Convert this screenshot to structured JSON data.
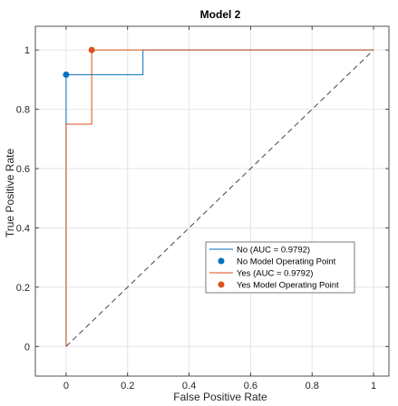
{
  "chart_data": {
    "type": "line",
    "title": "Model 2",
    "xlabel": "False Positive Rate",
    "ylabel": "True Positive Rate",
    "xlim": [
      -0.1,
      1.05
    ],
    "ylim": [
      -0.1,
      1.08
    ],
    "xticks": [
      0,
      0.2,
      0.4,
      0.6,
      0.8,
      1
    ],
    "xtick_labels": [
      "0",
      "0.2",
      "0.4",
      "0.6",
      "0.8",
      "1"
    ],
    "yticks": [
      0,
      0.2,
      0.4,
      0.6,
      0.8,
      1
    ],
    "ytick_labels": [
      "0",
      "0.2",
      "0.4",
      "0.6",
      "0.8",
      "1"
    ],
    "grid": true,
    "legend_position": "bottom-right",
    "series": [
      {
        "name": "No (AUC = 0.9792)",
        "kind": "line",
        "color": "#0072BD",
        "x": [
          0,
          0,
          0.25,
          0.25,
          1
        ],
        "y": [
          0,
          0.9167,
          0.9167,
          1,
          1
        ]
      },
      {
        "name": "No Model Operating Point",
        "kind": "point",
        "color": "#0072BD",
        "x": [
          0
        ],
        "y": [
          0.9167
        ]
      },
      {
        "name": "Yes (AUC = 0.9792)",
        "kind": "line",
        "color": "#D95319",
        "x": [
          0,
          0,
          0.0833,
          0.0833,
          1
        ],
        "y": [
          0,
          0.75,
          0.75,
          1,
          1
        ]
      },
      {
        "name": "Yes Model Operating Point",
        "kind": "point",
        "color": "#D95319",
        "x": [
          0.0833
        ],
        "y": [
          1
        ]
      }
    ],
    "reference_line": {
      "x": [
        0,
        1
      ],
      "y": [
        0,
        1
      ],
      "style": "dashed",
      "color": "#444444"
    }
  }
}
